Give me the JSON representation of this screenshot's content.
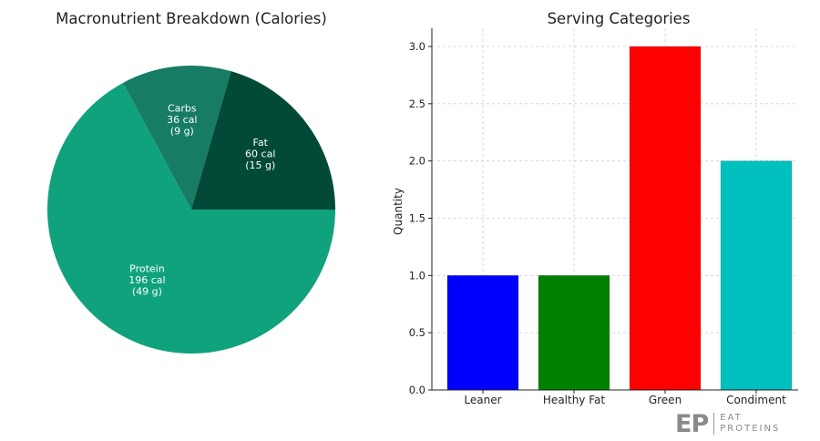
{
  "chart_data": [
    {
      "type": "pie",
      "title": "Macronutrient Breakdown (Calories)",
      "slices": [
        {
          "name": "Protein",
          "value": 196,
          "lines": [
            "Protein",
            "196 cal",
            "(49 g)"
          ],
          "color": "#10a27c"
        },
        {
          "name": "Carbs",
          "value": 36,
          "lines": [
            "Carbs",
            "36 cal",
            "(9 g)"
          ],
          "color": "#167c63"
        },
        {
          "name": "Fat",
          "value": 60,
          "lines": [
            "Fat",
            "60 cal",
            "(15 g)"
          ],
          "color": "#024a37"
        }
      ],
      "start_angle_deg": 0,
      "direction": "clockwise",
      "label_color": "#ffffff"
    },
    {
      "type": "bar",
      "title": "Serving Categories",
      "categories": [
        "Leaner",
        "Healthy Fat",
        "Green",
        "Condiment"
      ],
      "values": [
        1,
        1,
        3,
        2
      ],
      "colors": [
        "#0000ff",
        "#008000",
        "#ff0000",
        "#00bfbf"
      ],
      "xlabel": "",
      "ylabel": "Quantity",
      "ylim": [
        0,
        3.0
      ],
      "yticks": [
        "0.0",
        "0.5",
        "1.0",
        "1.5",
        "2.0",
        "2.5",
        "3.0"
      ],
      "grid": true
    }
  ],
  "logo": {
    "mark": "EP",
    "line1": "EAT",
    "line2": "PROTEINS"
  }
}
